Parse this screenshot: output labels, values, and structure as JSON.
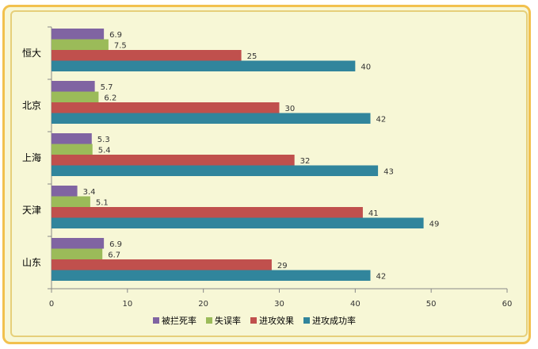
{
  "chart_data": {
    "type": "bar",
    "orientation": "horizontal",
    "categories": [
      "恒大",
      "北京",
      "上海",
      "天津",
      "山东"
    ],
    "series": [
      {
        "name": "被拦死率",
        "color": "#8064a2",
        "values": [
          6.9,
          5.7,
          5.3,
          3.4,
          6.9
        ]
      },
      {
        "name": "失误率",
        "color": "#9bbb59",
        "values": [
          7.5,
          6.2,
          5.4,
          5.1,
          6.7
        ]
      },
      {
        "name": "进攻效果",
        "color": "#c0504d",
        "values": [
          25,
          30,
          32,
          41,
          29
        ]
      },
      {
        "name": "进攻成功率",
        "color": "#31859c",
        "values": [
          40,
          42,
          43,
          49,
          42
        ]
      }
    ],
    "xlim": [
      0,
      60
    ],
    "xticks": [
      "0",
      "10",
      "20",
      "30",
      "40",
      "50",
      "60"
    ],
    "grid": false,
    "legend_position": "bottom",
    "title": "",
    "xlabel": "",
    "ylabel": ""
  }
}
